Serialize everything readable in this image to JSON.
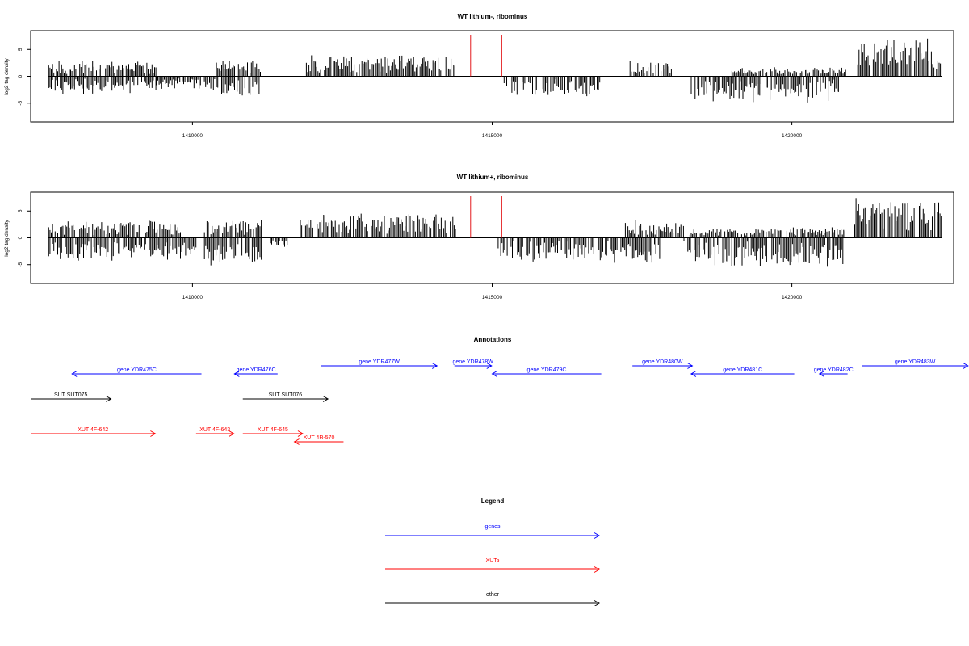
{
  "chart_data": [
    {
      "type": "bar",
      "title": "WT lithium-, ribominus",
      "ylabel": "log2 tag density",
      "xlabel": "",
      "xlim": [
        1407300,
        1422700
      ],
      "ylim": [
        -8.5,
        8.5
      ],
      "x_ticks": [
        1410000,
        1415000,
        1420000
      ],
      "x_tick_labels": [
        "1410000",
        "1415000",
        "1420000"
      ],
      "y_ticks": [
        -5,
        0,
        5
      ],
      "y_tick_labels": [
        "-5",
        "0",
        "5"
      ],
      "marker_lines": [
        1414640,
        1415160
      ],
      "segments": [
        {
          "start": 1407600,
          "end": 1409400,
          "sign": 1,
          "level": 1.8,
          "spread": 1.1
        },
        {
          "start": 1407600,
          "end": 1409400,
          "sign": -1,
          "level": 2.0,
          "spread": 1.0
        },
        {
          "start": 1409400,
          "end": 1410400,
          "sign": -1,
          "level": 1.6,
          "spread": 0.8
        },
        {
          "start": 1410400,
          "end": 1411150,
          "sign": 1,
          "level": 2.0,
          "spread": 1.0
        },
        {
          "start": 1410400,
          "end": 1411150,
          "sign": -1,
          "level": 2.5,
          "spread": 1.0
        },
        {
          "start": 1411900,
          "end": 1414400,
          "sign": 1,
          "level": 2.4,
          "spread": 1.2
        },
        {
          "start": 1415200,
          "end": 1416850,
          "sign": -1,
          "level": 2.4,
          "spread": 1.1
        },
        {
          "start": 1417300,
          "end": 1418000,
          "sign": 1,
          "level": 1.8,
          "spread": 1.1
        },
        {
          "start": 1418300,
          "end": 1420800,
          "sign": -1,
          "level": 3.0,
          "spread": 1.3
        },
        {
          "start": 1419000,
          "end": 1420900,
          "sign": 1,
          "level": 1.0,
          "spread": 0.6
        },
        {
          "start": 1421100,
          "end": 1422500,
          "sign": 1,
          "level": 4.6,
          "spread": 1.2
        }
      ]
    },
    {
      "type": "bar",
      "title": "WT lithium+, ribominus",
      "ylabel": "log2 tag density",
      "xlabel": "",
      "xlim": [
        1407300,
        1422700
      ],
      "ylim": [
        -8.5,
        8.5
      ],
      "x_ticks": [
        1410000,
        1415000,
        1420000
      ],
      "x_tick_labels": [
        "1410000",
        "1415000",
        "1420000"
      ],
      "y_ticks": [
        -5,
        0,
        5
      ],
      "y_tick_labels": [
        "-5",
        "0",
        "5"
      ],
      "marker_lines": [
        1414640,
        1415160
      ],
      "segments": [
        {
          "start": 1407600,
          "end": 1409800,
          "sign": 1,
          "level": 2.0,
          "spread": 1.0
        },
        {
          "start": 1407600,
          "end": 1410100,
          "sign": -1,
          "level": 2.8,
          "spread": 1.1
        },
        {
          "start": 1410200,
          "end": 1411150,
          "sign": 1,
          "level": 2.2,
          "spread": 1.0
        },
        {
          "start": 1410200,
          "end": 1411150,
          "sign": -1,
          "level": 3.5,
          "spread": 1.2
        },
        {
          "start": 1411300,
          "end": 1411600,
          "sign": -1,
          "level": 1.2,
          "spread": 0.5
        },
        {
          "start": 1411800,
          "end": 1414400,
          "sign": 1,
          "level": 3.0,
          "spread": 1.2
        },
        {
          "start": 1415100,
          "end": 1417800,
          "sign": -1,
          "level": 3.0,
          "spread": 1.2
        },
        {
          "start": 1417200,
          "end": 1418200,
          "sign": 1,
          "level": 2.0,
          "spread": 1.2
        },
        {
          "start": 1418200,
          "end": 1420900,
          "sign": -1,
          "level": 3.5,
          "spread": 1.3
        },
        {
          "start": 1418300,
          "end": 1420900,
          "sign": 1,
          "level": 1.2,
          "spread": 0.7
        },
        {
          "start": 1421050,
          "end": 1422500,
          "sign": 1,
          "level": 4.8,
          "spread": 1.3
        }
      ]
    }
  ],
  "annotations": {
    "title": "Annotations",
    "xlim": [
      1407300,
      1422700
    ],
    "features": [
      {
        "label": "gene YDR475C",
        "kind": "gene",
        "start": 1407990,
        "end": 1410150,
        "strand": "-",
        "row": 2
      },
      {
        "label": "gene YDR476C",
        "kind": "gene",
        "start": 1410700,
        "end": 1411420,
        "strand": "-",
        "row": 2
      },
      {
        "label": "gene YDR477W",
        "kind": "gene",
        "start": 1412150,
        "end": 1414080,
        "strand": "+",
        "row": 1
      },
      {
        "label": "gene YDR478W",
        "kind": "gene",
        "start": 1414370,
        "end": 1414990,
        "strand": "+",
        "row": 1
      },
      {
        "label": "gene YDR479C",
        "kind": "gene",
        "start": 1415000,
        "end": 1416820,
        "strand": "-",
        "row": 2
      },
      {
        "label": "gene YDR480W",
        "kind": "gene",
        "start": 1417340,
        "end": 1418340,
        "strand": "+",
        "row": 1
      },
      {
        "label": "gene YDR481C",
        "kind": "gene",
        "start": 1418320,
        "end": 1420040,
        "strand": "-",
        "row": 2
      },
      {
        "label": "gene YDR482C",
        "kind": "gene",
        "start": 1420460,
        "end": 1420930,
        "strand": "-",
        "row": 2
      },
      {
        "label": "gene YDR483W",
        "kind": "gene",
        "start": 1421170,
        "end": 1422940,
        "strand": "+",
        "row": 1
      },
      {
        "label": "SUT SUT075",
        "kind": "other",
        "start": 1407300,
        "end": 1408640,
        "strand": "+",
        "row": 3
      },
      {
        "label": "SUT SUT076",
        "kind": "other",
        "start": 1410840,
        "end": 1412260,
        "strand": "+",
        "row": 3
      },
      {
        "label": "XUT 4F-642",
        "kind": "xut",
        "start": 1407300,
        "end": 1409380,
        "strand": "+",
        "row": 4
      },
      {
        "label": "XUT 4F-643",
        "kind": "xut",
        "start": 1410060,
        "end": 1410690,
        "strand": "+",
        "row": 4
      },
      {
        "label": "XUT 4F-645",
        "kind": "xut",
        "start": 1410840,
        "end": 1411840,
        "strand": "+",
        "row": 4
      },
      {
        "label": "XUT 4R-570",
        "kind": "xut",
        "start": 1411700,
        "end": 1412520,
        "strand": "-",
        "row": 5
      }
    ]
  },
  "legend": {
    "title": "Legend",
    "items": [
      {
        "label": "genes",
        "kind": "gene"
      },
      {
        "label": "XUTs",
        "kind": "xut"
      },
      {
        "label": "other",
        "kind": "other"
      }
    ]
  },
  "colors": {
    "gene": "#0000ff",
    "xut": "#ff0000",
    "other": "#000000",
    "marker": "#e31a1c",
    "bar": "#000000"
  }
}
